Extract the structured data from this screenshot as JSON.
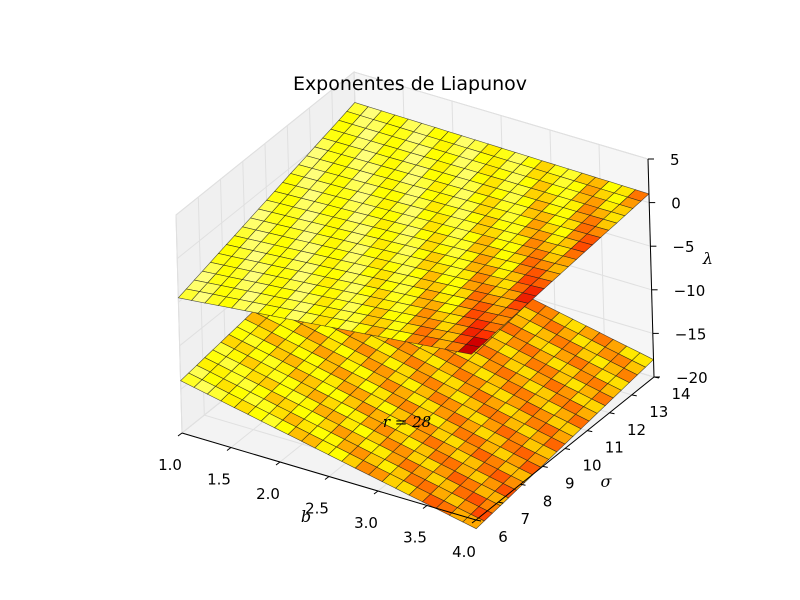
{
  "chart_data": {
    "type": "surface3d",
    "title": "Exponentes de Liapunov",
    "xlabel": "b",
    "ylabel": "σ",
    "zlabel": "λ",
    "annotation": "r = 28",
    "x_ticks": [
      "1.0",
      "1.5",
      "2.0",
      "2.5",
      "3.0",
      "3.5",
      "4.0"
    ],
    "y_ticks": [
      "6",
      "7",
      "8",
      "9",
      "10",
      "11",
      "12",
      "13",
      "14"
    ],
    "z_ticks": [
      "5",
      "0",
      "−5",
      "−10",
      "−15",
      "−20"
    ],
    "xlim": [
      1.0,
      4.0
    ],
    "ylim": [
      6,
      14
    ],
    "zlim": [
      -20,
      5
    ],
    "grid": true,
    "colormap": "hot",
    "series": [
      {
        "corner_values": {
          "b1_s6": -4.5,
          "b4_s6": -1.0,
          "b1_s14": 1.5,
          "b4_s14": 1.0
        }
      },
      {
        "corner_values": {
          "b1_s6": -14.0,
          "b4_s6": -21.0,
          "b1_s14": -11.0,
          "b4_s14": -18.0
        }
      }
    ]
  }
}
